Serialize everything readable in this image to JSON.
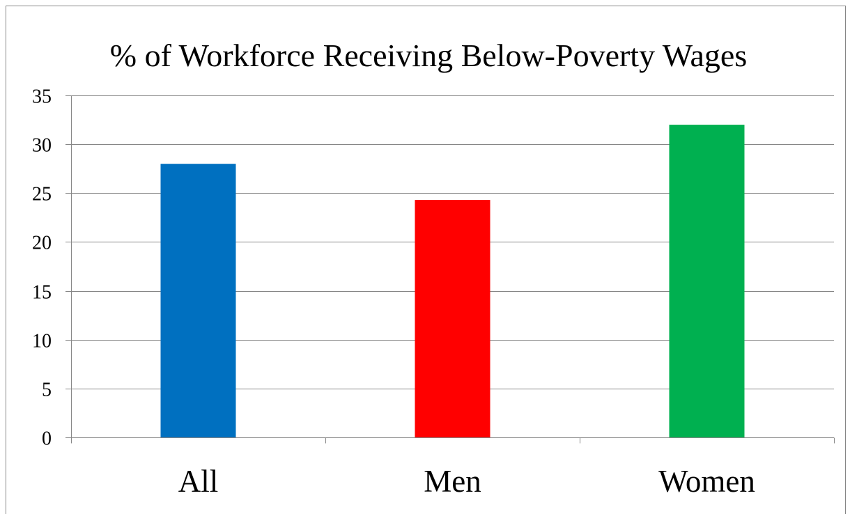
{
  "chart_data": {
    "type": "bar",
    "title": "% of Workforce Receiving Below-Poverty Wages",
    "categories": [
      "All",
      "Men",
      "Women"
    ],
    "values": [
      28,
      24.3,
      32
    ],
    "colors": [
      "#0070c0",
      "#ff0000",
      "#00b050"
    ],
    "xlabel": "",
    "ylabel": "",
    "ylim": [
      0,
      35
    ],
    "yticks": [
      0,
      5,
      10,
      15,
      20,
      25,
      30,
      35
    ],
    "grid": true,
    "legend": "none"
  }
}
